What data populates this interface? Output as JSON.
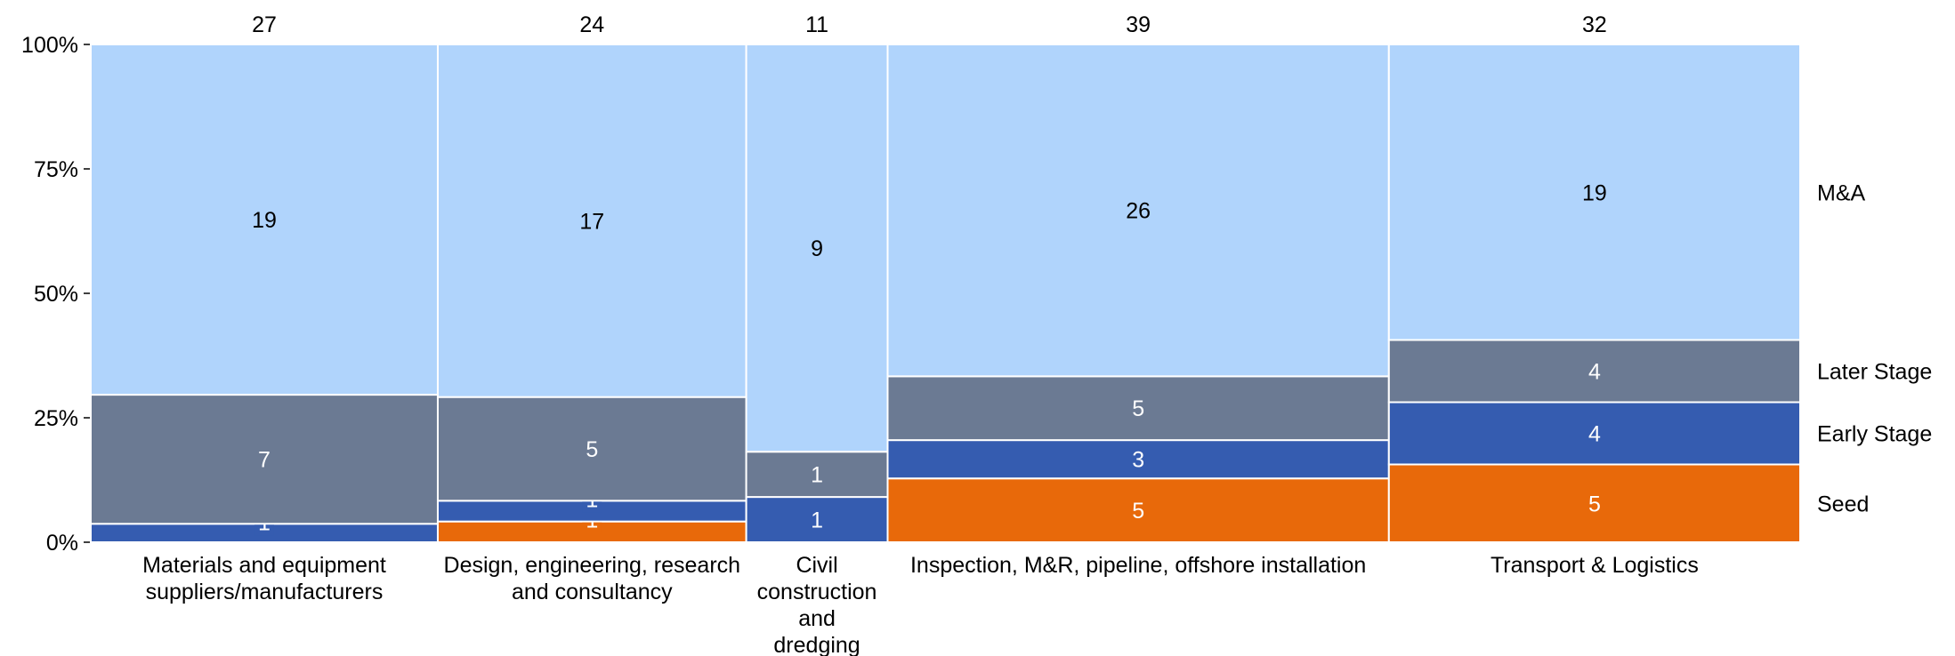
{
  "chart_data": {
    "type": "marimekko",
    "categories": [
      "Materials and equipment suppliers/manufacturers",
      "Design, engineering, research and consultancy",
      "Civil construction and dredging",
      "Inspection, M&R, pipeline, offshore installation",
      "Transport & Logistics"
    ],
    "category_label_lines": [
      [
        "Materials and equipment",
        "suppliers/manufacturers"
      ],
      [
        "Design, engineering, research",
        "and consultancy"
      ],
      [
        "Civil",
        "construction",
        "and",
        "dredging"
      ],
      [
        "Inspection, M&R, pipeline, offshore installation"
      ],
      [
        "Transport & Logistics"
      ]
    ],
    "totals": [
      27,
      24,
      11,
      39,
      32
    ],
    "series": [
      {
        "name": "Seed",
        "color": "#E8690A",
        "values": [
          0,
          1,
          0,
          5,
          5
        ]
      },
      {
        "name": "Early Stage",
        "color": "#355CB0",
        "values": [
          1,
          1,
          1,
          3,
          4
        ]
      },
      {
        "name": "Later Stage",
        "color": "#6B7A93",
        "values": [
          7,
          5,
          1,
          5,
          4
        ]
      },
      {
        "name": "M&A",
        "color": "#B0D4FC",
        "values": [
          19,
          17,
          9,
          26,
          19
        ]
      }
    ],
    "y_ticks": [
      "0%",
      "25%",
      "50%",
      "75%",
      "100%"
    ],
    "ylim": [
      0,
      100
    ],
    "legend_position": "right"
  }
}
